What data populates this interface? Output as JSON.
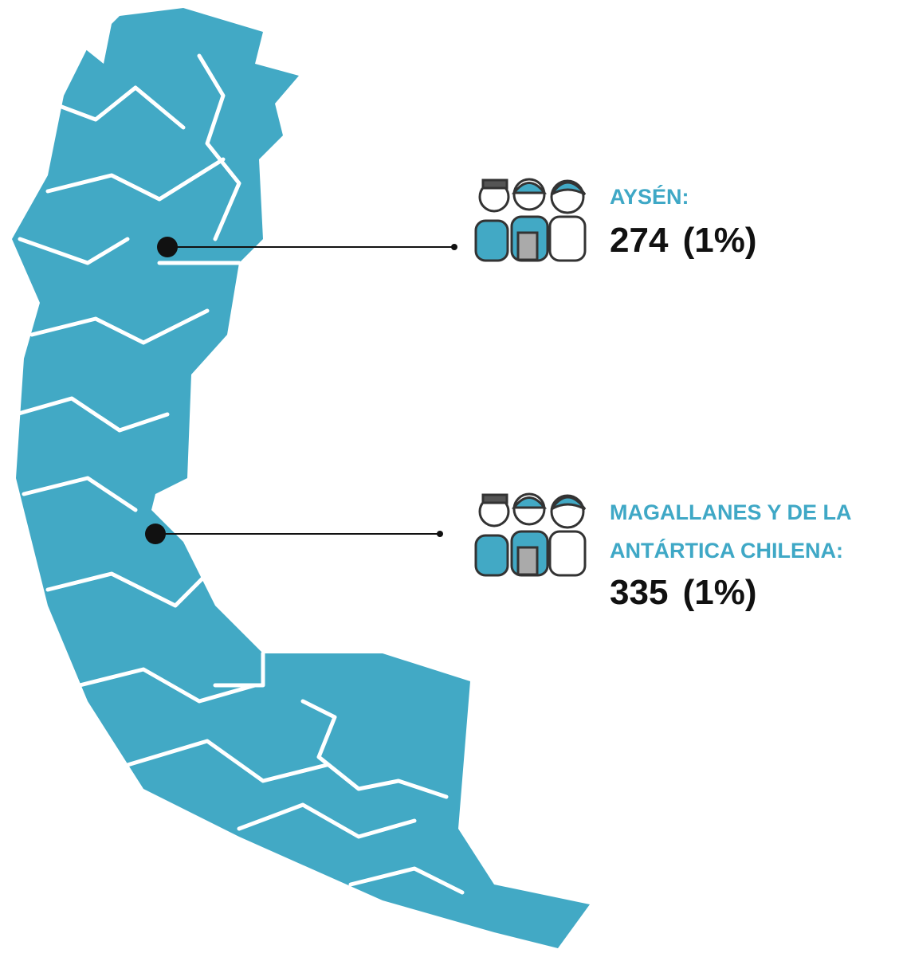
{
  "regions": [
    {
      "name_lines": [
        "AYSÉN:"
      ],
      "count": 274,
      "share": "(1%)"
    },
    {
      "name_lines": [
        "MAGALLANES Y DE LA",
        "ANTÁRTICA CHILENA:"
      ],
      "count": 335,
      "share": "(1%)"
    }
  ]
}
